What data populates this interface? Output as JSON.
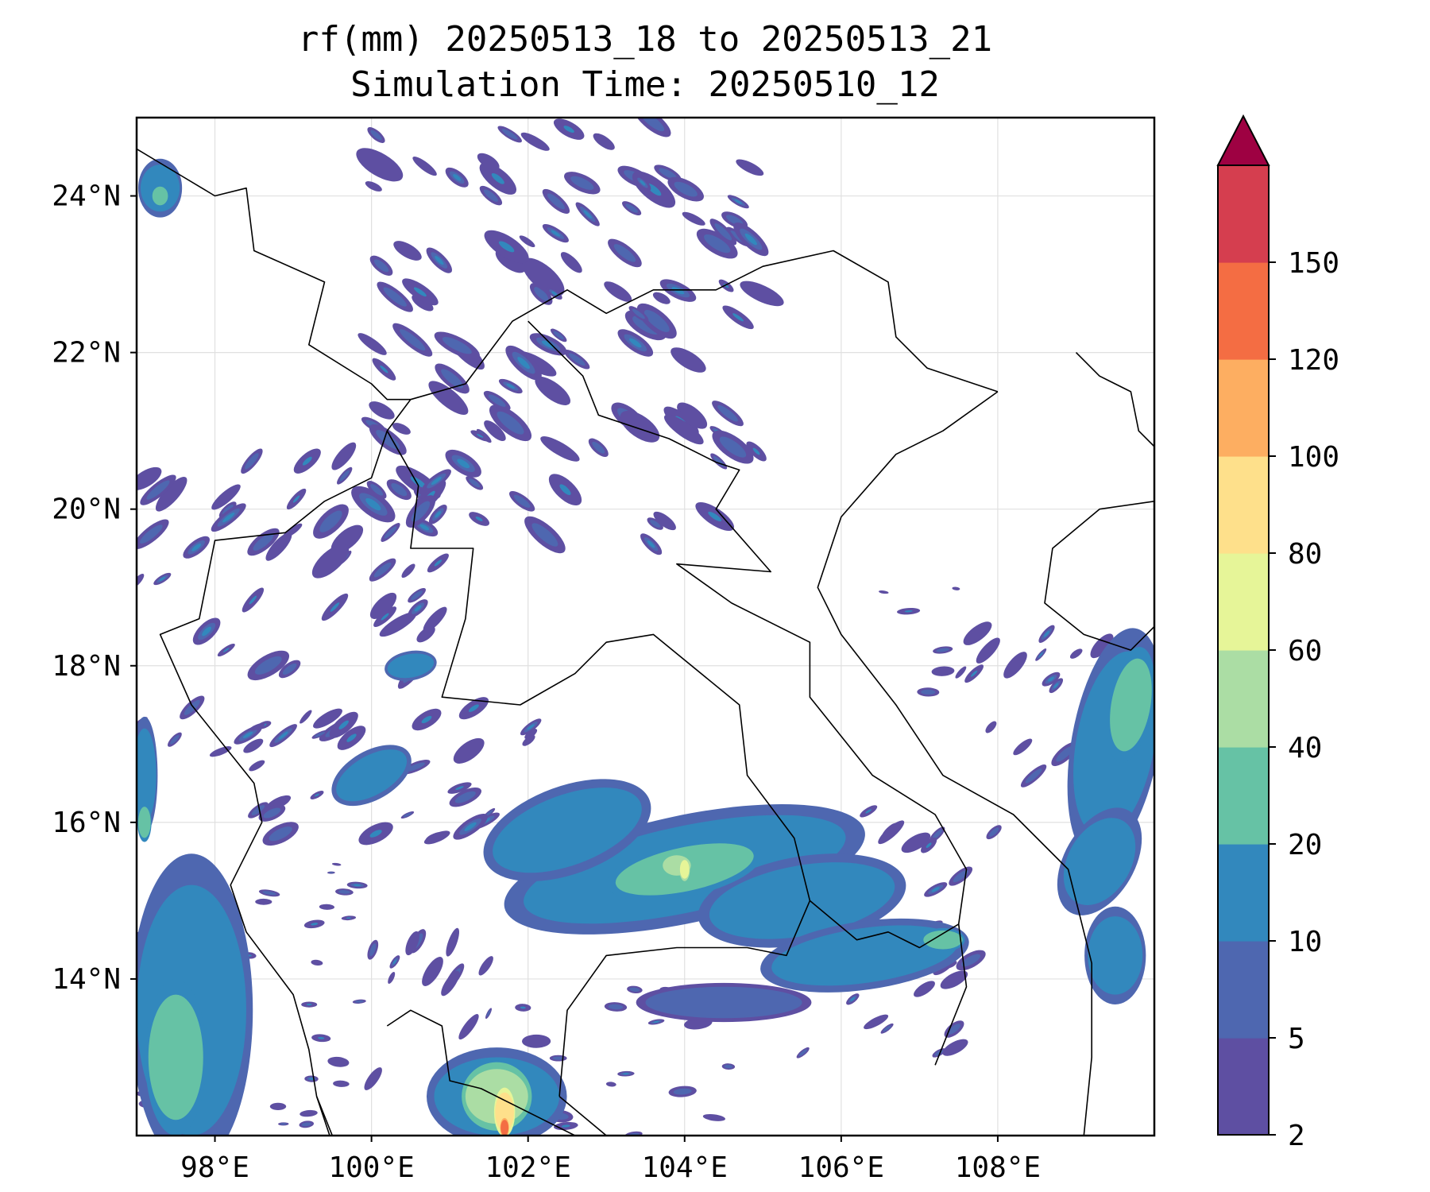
{
  "title": {
    "line1": "rf(mm) 20250513_18 to 20250513_21",
    "line2": "Simulation Time: 20250510_12"
  },
  "map": {
    "lon_range": [
      97.0,
      110.0
    ],
    "lat_range": [
      12.0,
      25.0
    ],
    "projection": "PlateCarree",
    "grid": true,
    "lon_ticks": [
      98,
      100,
      102,
      104,
      106,
      108
    ],
    "lon_tick_labels": [
      "98°E",
      "100°E",
      "102°E",
      "104°E",
      "106°E",
      "108°E"
    ],
    "lat_ticks": [
      14,
      16,
      18,
      20,
      22,
      24
    ],
    "lat_tick_labels": [
      "14°N",
      "16°N",
      "18°N",
      "20°N",
      "22°N",
      "24°N"
    ],
    "rain_areas": [
      {
        "lon": 104.0,
        "lat": 15.4,
        "rx": 2.1,
        "ry": 0.55,
        "rot": -12,
        "level": 10
      },
      {
        "lon": 102.5,
        "lat": 15.9,
        "rx": 1.0,
        "ry": 0.45,
        "rot": -20,
        "level": 10
      },
      {
        "lon": 105.5,
        "lat": 15.0,
        "rx": 1.2,
        "ry": 0.45,
        "rot": -10,
        "level": 10
      },
      {
        "lon": 104.0,
        "lat": 15.4,
        "rx": 0.9,
        "ry": 0.28,
        "rot": -12,
        "level": 20
      },
      {
        "lon": 103.9,
        "lat": 15.45,
        "rx": 0.18,
        "ry": 0.13,
        "rot": 0,
        "level": 40
      },
      {
        "lon": 104.0,
        "lat": 15.4,
        "rx": 0.06,
        "ry": 0.12,
        "rot": 0,
        "level": 60
      },
      {
        "lon": 106.3,
        "lat": 14.3,
        "rx": 1.2,
        "ry": 0.35,
        "rot": -8,
        "level": 10
      },
      {
        "lon": 104.5,
        "lat": 13.7,
        "rx": 1.0,
        "ry": 0.2,
        "rot": 0,
        "level": 5
      },
      {
        "lon": 101.6,
        "lat": 12.5,
        "rx": 0.8,
        "ry": 0.5,
        "rot": 0,
        "level": 10
      },
      {
        "lon": 101.6,
        "lat": 12.5,
        "rx": 0.4,
        "ry": 0.35,
        "rot": 0,
        "level": 40
      },
      {
        "lon": 101.7,
        "lat": 12.3,
        "rx": 0.12,
        "ry": 0.25,
        "rot": 0,
        "level": 80
      },
      {
        "lon": 101.7,
        "lat": 12.1,
        "rx": 0.05,
        "ry": 0.1,
        "rot": 0,
        "level": 120
      },
      {
        "lon": 97.7,
        "lat": 13.6,
        "rx": 0.7,
        "ry": 1.6,
        "rot": 0,
        "level": 10
      },
      {
        "lon": 97.5,
        "lat": 13.0,
        "rx": 0.35,
        "ry": 0.8,
        "rot": 0,
        "level": 20
      },
      {
        "lon": 109.5,
        "lat": 17.0,
        "rx": 0.5,
        "ry": 1.2,
        "rot": 10,
        "level": 10
      },
      {
        "lon": 109.7,
        "lat": 17.5,
        "rx": 0.25,
        "ry": 0.6,
        "rot": 10,
        "level": 20
      },
      {
        "lon": 109.3,
        "lat": 15.5,
        "rx": 0.4,
        "ry": 0.6,
        "rot": 30,
        "level": 10
      },
      {
        "lon": 109.5,
        "lat": 14.3,
        "rx": 0.35,
        "ry": 0.5,
        "rot": 0,
        "level": 10
      },
      {
        "lon": 100.0,
        "lat": 16.6,
        "rx": 0.5,
        "ry": 0.25,
        "rot": -30,
        "level": 10
      },
      {
        "lon": 100.5,
        "lat": 18.0,
        "rx": 0.3,
        "ry": 0.15,
        "rot": -10,
        "level": 10
      },
      {
        "lon": 97.1,
        "lat": 16.6,
        "rx": 0.15,
        "ry": 0.6,
        "rot": 0,
        "level": 10
      },
      {
        "lon": 97.1,
        "lat": 16.0,
        "rx": 0.08,
        "ry": 0.2,
        "rot": 0,
        "level": 20
      },
      {
        "lon": 107.3,
        "lat": 14.5,
        "rx": 0.25,
        "ry": 0.12,
        "rot": 0,
        "level": 20
      },
      {
        "lon": 97.3,
        "lat": 24.1,
        "rx": 0.25,
        "ry": 0.3,
        "rot": 0,
        "level": 10
      },
      {
        "lon": 97.3,
        "lat": 24.0,
        "rx": 0.1,
        "ry": 0.12,
        "rot": 0,
        "level": 20
      }
    ],
    "streaks": [
      {
        "lon0": 100.0,
        "lon1": 105.0,
        "lat0": 19.5,
        "lat1": 25.0,
        "count": 110,
        "rot": 35,
        "len": 0.45
      },
      {
        "lon0": 97.0,
        "lon1": 101.0,
        "lat0": 17.0,
        "lat1": 21.0,
        "count": 55,
        "rot": -40,
        "len": 0.4
      },
      {
        "lon0": 98.0,
        "lon1": 102.5,
        "lat0": 15.8,
        "lat1": 17.5,
        "count": 30,
        "rot": -30,
        "len": 0.35
      },
      {
        "lon0": 105.5,
        "lon1": 108.0,
        "lat0": 13.0,
        "lat1": 16.3,
        "count": 30,
        "rot": -35,
        "len": 0.3
      },
      {
        "lon0": 101.5,
        "lon1": 105.0,
        "lat0": 12.0,
        "lat1": 14.0,
        "count": 20,
        "rot": 0,
        "len": 0.25
      },
      {
        "lon0": 97.0,
        "lon1": 100.0,
        "lat0": 12.0,
        "lat1": 15.5,
        "count": 45,
        "rot": 0,
        "len": 0.2
      },
      {
        "lon0": 99.5,
        "lon1": 101.5,
        "lat0": 12.5,
        "lat1": 14.5,
        "count": 15,
        "rot": -60,
        "len": 0.3
      },
      {
        "lon0": 107.5,
        "lon1": 110.0,
        "lat0": 16.5,
        "lat1": 18.5,
        "count": 25,
        "rot": -40,
        "len": 0.3
      },
      {
        "lon0": 106.5,
        "lon1": 107.5,
        "lat0": 17.6,
        "lat1": 19.0,
        "count": 6,
        "rot": 0,
        "len": 0.2
      }
    ],
    "land_borders": [
      [
        [
          97.0,
          24.6
        ],
        [
          97.5,
          24.3
        ],
        [
          98.0,
          24.0
        ],
        [
          98.4,
          24.1
        ],
        [
          98.5,
          23.3
        ],
        [
          99.4,
          22.9
        ],
        [
          99.2,
          22.1
        ],
        [
          100.0,
          21.6
        ],
        [
          100.2,
          21.4
        ],
        [
          100.5,
          21.4
        ],
        [
          100.2,
          21.0
        ],
        [
          100.0,
          20.4
        ],
        [
          99.4,
          20.1
        ],
        [
          98.9,
          19.7
        ],
        [
          98.0,
          19.6
        ],
        [
          97.8,
          18.6
        ],
        [
          97.3,
          18.4
        ],
        [
          97.7,
          17.5
        ],
        [
          98.5,
          16.5
        ],
        [
          98.6,
          16.0
        ],
        [
          98.2,
          15.2
        ],
        [
          98.4,
          14.6
        ],
        [
          99.0,
          13.8
        ],
        [
          99.2,
          13.1
        ],
        [
          99.3,
          12.5
        ],
        [
          99.5,
          12.0
        ]
      ],
      [
        [
          100.5,
          21.4
        ],
        [
          101.2,
          21.6
        ],
        [
          101.8,
          22.4
        ],
        [
          102.5,
          22.8
        ],
        [
          103.0,
          22.5
        ],
        [
          103.6,
          22.8
        ],
        [
          104.4,
          22.8
        ],
        [
          105.0,
          23.1
        ],
        [
          105.9,
          23.3
        ],
        [
          106.6,
          22.9
        ],
        [
          106.7,
          22.2
        ],
        [
          107.1,
          21.8
        ],
        [
          108.0,
          21.5
        ]
      ],
      [
        [
          100.2,
          21.0
        ],
        [
          100.6,
          20.3
        ],
        [
          100.5,
          19.5
        ],
        [
          101.3,
          19.5
        ],
        [
          101.2,
          18.6
        ],
        [
          100.9,
          17.6
        ],
        [
          101.9,
          17.5
        ],
        [
          102.6,
          17.9
        ],
        [
          103.0,
          18.3
        ],
        [
          103.6,
          18.4
        ],
        [
          104.7,
          17.5
        ],
        [
          104.8,
          16.6
        ],
        [
          105.4,
          15.8
        ],
        [
          105.6,
          15.0
        ],
        [
          105.3,
          14.3
        ],
        [
          104.8,
          14.4
        ],
        [
          103.9,
          14.4
        ],
        [
          103.0,
          14.3
        ],
        [
          102.5,
          13.6
        ],
        [
          102.4,
          12.5
        ]
      ],
      [
        [
          102.0,
          22.4
        ],
        [
          102.7,
          21.7
        ],
        [
          102.9,
          21.2
        ],
        [
          103.8,
          20.9
        ],
        [
          104.4,
          20.6
        ],
        [
          104.7,
          20.5
        ],
        [
          104.4,
          20.0
        ],
        [
          105.1,
          19.2
        ],
        [
          103.9,
          19.3
        ],
        [
          104.6,
          18.8
        ],
        [
          105.6,
          18.3
        ],
        [
          105.6,
          17.6
        ],
        [
          106.4,
          16.6
        ],
        [
          107.2,
          16.1
        ],
        [
          107.6,
          15.4
        ],
        [
          107.5,
          14.7
        ],
        [
          107.6,
          13.9
        ],
        [
          107.2,
          12.9
        ]
      ],
      [
        [
          105.6,
          15.0
        ],
        [
          106.2,
          14.5
        ],
        [
          106.6,
          14.6
        ],
        [
          107.0,
          14.4
        ],
        [
          107.5,
          14.7
        ]
      ],
      [
        [
          108.0,
          21.5
        ],
        [
          107.3,
          21.0
        ],
        [
          106.7,
          20.7
        ],
        [
          106.0,
          19.9
        ],
        [
          105.7,
          19.0
        ],
        [
          106.0,
          18.4
        ],
        [
          106.7,
          17.5
        ],
        [
          107.3,
          16.6
        ],
        [
          108.2,
          16.1
        ],
        [
          108.9,
          15.4
        ],
        [
          109.2,
          14.2
        ],
        [
          109.2,
          13.0
        ],
        [
          109.1,
          12.0
        ]
      ],
      [
        [
          99.3,
          12.5
        ],
        [
          99.5,
          11.9
        ]
      ],
      [
        [
          100.2,
          13.4
        ],
        [
          100.5,
          13.6
        ],
        [
          100.9,
          13.4
        ],
        [
          101.0,
          12.7
        ],
        [
          101.4,
          12.6
        ],
        [
          102.2,
          12.2
        ],
        [
          102.6,
          12.0
        ]
      ],
      [
        [
          102.4,
          12.5
        ],
        [
          103.0,
          12.0
        ]
      ],
      [
        [
          109.0,
          22.0
        ],
        [
          109.3,
          21.7
        ],
        [
          109.7,
          21.5
        ],
        [
          109.8,
          21.0
        ],
        [
          110.0,
          20.8
        ]
      ],
      [
        [
          110.0,
          20.1
        ],
        [
          109.3,
          20.0
        ],
        [
          108.7,
          19.5
        ],
        [
          108.6,
          18.8
        ],
        [
          109.1,
          18.4
        ],
        [
          109.7,
          18.2
        ],
        [
          110.0,
          18.5
        ]
      ]
    ]
  },
  "colorbar": {
    "levels": [
      2,
      5,
      10,
      20,
      40,
      60,
      80,
      100,
      120,
      150
    ],
    "labels": [
      "2",
      "5",
      "10",
      "20",
      "40",
      "60",
      "80",
      "100",
      "120",
      "150"
    ],
    "colors": [
      "#5e4fa2",
      "#4e67b0",
      "#3288bd",
      "#66c2a5",
      "#abdda4",
      "#e6f598",
      "#fee08b",
      "#fdae61",
      "#f46d43",
      "#d53e4f"
    ],
    "extend_color": "#9e0142",
    "border_color": "#000000",
    "grid_color": "#e0e0e0"
  }
}
